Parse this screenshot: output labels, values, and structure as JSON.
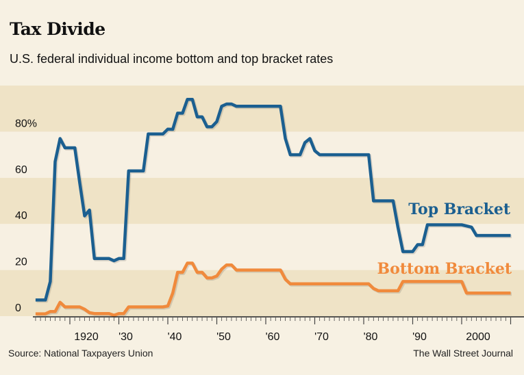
{
  "title": "Tax Divide",
  "subtitle": "U.S. federal individual income bottom and top bracket rates",
  "source": "Source: National Taxpayers Union",
  "credit": "The Wall Street Journal",
  "colors": {
    "top": "#1b5f90",
    "bottom": "#f08a3c",
    "band_dark": "#efe3c6",
    "band_light": "#f7f0e2"
  },
  "chart_data": {
    "type": "line",
    "title": "Tax Divide",
    "subtitle": "U.S. federal individual income bottom and top bracket rates",
    "xlabel": "",
    "ylabel": "",
    "xlim": [
      1913,
      2010
    ],
    "ylim": [
      0,
      100
    ],
    "y_ticks": [
      0,
      20,
      40,
      60,
      80
    ],
    "y_tick_labels": [
      "0",
      "20",
      "40",
      "60",
      "80%"
    ],
    "x_ticks": [
      1920,
      1930,
      1940,
      1950,
      1960,
      1970,
      1980,
      1990,
      2000
    ],
    "x_tick_labels": [
      "1920",
      "'30",
      "'40",
      "'50",
      "'60",
      "'70",
      "'80",
      "'90",
      "2000"
    ],
    "grid": "alternating horizontal bands",
    "legend": "inline labels at right",
    "x": [
      1913,
      1914,
      1915,
      1916,
      1917,
      1918,
      1919,
      1920,
      1921,
      1922,
      1923,
      1924,
      1925,
      1926,
      1927,
      1928,
      1929,
      1930,
      1931,
      1932,
      1933,
      1934,
      1935,
      1936,
      1937,
      1938,
      1939,
      1940,
      1941,
      1942,
      1943,
      1944,
      1945,
      1946,
      1947,
      1948,
      1949,
      1950,
      1951,
      1952,
      1953,
      1954,
      1955,
      1956,
      1957,
      1958,
      1959,
      1960,
      1961,
      1962,
      1963,
      1964,
      1965,
      1966,
      1967,
      1968,
      1969,
      1970,
      1971,
      1972,
      1973,
      1974,
      1975,
      1976,
      1977,
      1978,
      1979,
      1980,
      1981,
      1982,
      1983,
      1984,
      1985,
      1986,
      1987,
      1988,
      1989,
      1990,
      1991,
      1992,
      1993,
      1994,
      1995,
      1996,
      1997,
      1998,
      1999,
      2000,
      2001,
      2002,
      2003,
      2004,
      2005,
      2006,
      2007,
      2008,
      2009,
      2010
    ],
    "series": [
      {
        "name": "Top Bracket",
        "color": "#1b5f90",
        "values": [
          7,
          7,
          7,
          15,
          67,
          77,
          73,
          73,
          73,
          58,
          43.5,
          46,
          25,
          25,
          25,
          25,
          24,
          25,
          25,
          63,
          63,
          63,
          63,
          79,
          79,
          79,
          79,
          81.1,
          81,
          88,
          88,
          94,
          94,
          86.45,
          86.45,
          82.13,
          82.13,
          84.36,
          91,
          92,
          92,
          91,
          91,
          91,
          91,
          91,
          91,
          91,
          91,
          91,
          91,
          77,
          70,
          70,
          70,
          75.25,
          77,
          71.75,
          70,
          70,
          70,
          70,
          70,
          70,
          70,
          70,
          70,
          70,
          70,
          50,
          50,
          50,
          50,
          50,
          38.5,
          28,
          28,
          28,
          31,
          31,
          39.6,
          39.6,
          39.6,
          39.6,
          39.6,
          39.6,
          39.6,
          39.6,
          39.1,
          38.6,
          35,
          35,
          35,
          35,
          35,
          35,
          35,
          35
        ]
      },
      {
        "name": "Bottom Bracket",
        "color": "#f08a3c",
        "values": [
          1,
          1,
          1,
          2,
          2,
          6,
          4,
          4,
          4,
          4,
          3,
          1.5,
          1.125,
          1.125,
          1.125,
          1.125,
          0.375,
          1.125,
          1.125,
          4,
          4,
          4,
          4,
          4,
          4,
          4,
          4,
          4.4,
          10,
          19,
          19,
          23,
          23,
          19,
          19,
          16.6,
          16.6,
          17.4,
          20.4,
          22.2,
          22.2,
          20,
          20,
          20,
          20,
          20,
          20,
          20,
          20,
          20,
          20,
          16,
          14,
          14,
          14,
          14,
          14,
          14,
          14,
          14,
          14,
          14,
          14,
          14,
          14,
          14,
          14,
          14,
          14,
          12,
          11,
          11,
          11,
          11,
          11,
          15,
          15,
          15,
          15,
          15,
          15,
          15,
          15,
          15,
          15,
          15,
          15,
          15,
          10,
          10,
          10,
          10,
          10,
          10,
          10,
          10,
          10,
          10
        ]
      }
    ]
  }
}
